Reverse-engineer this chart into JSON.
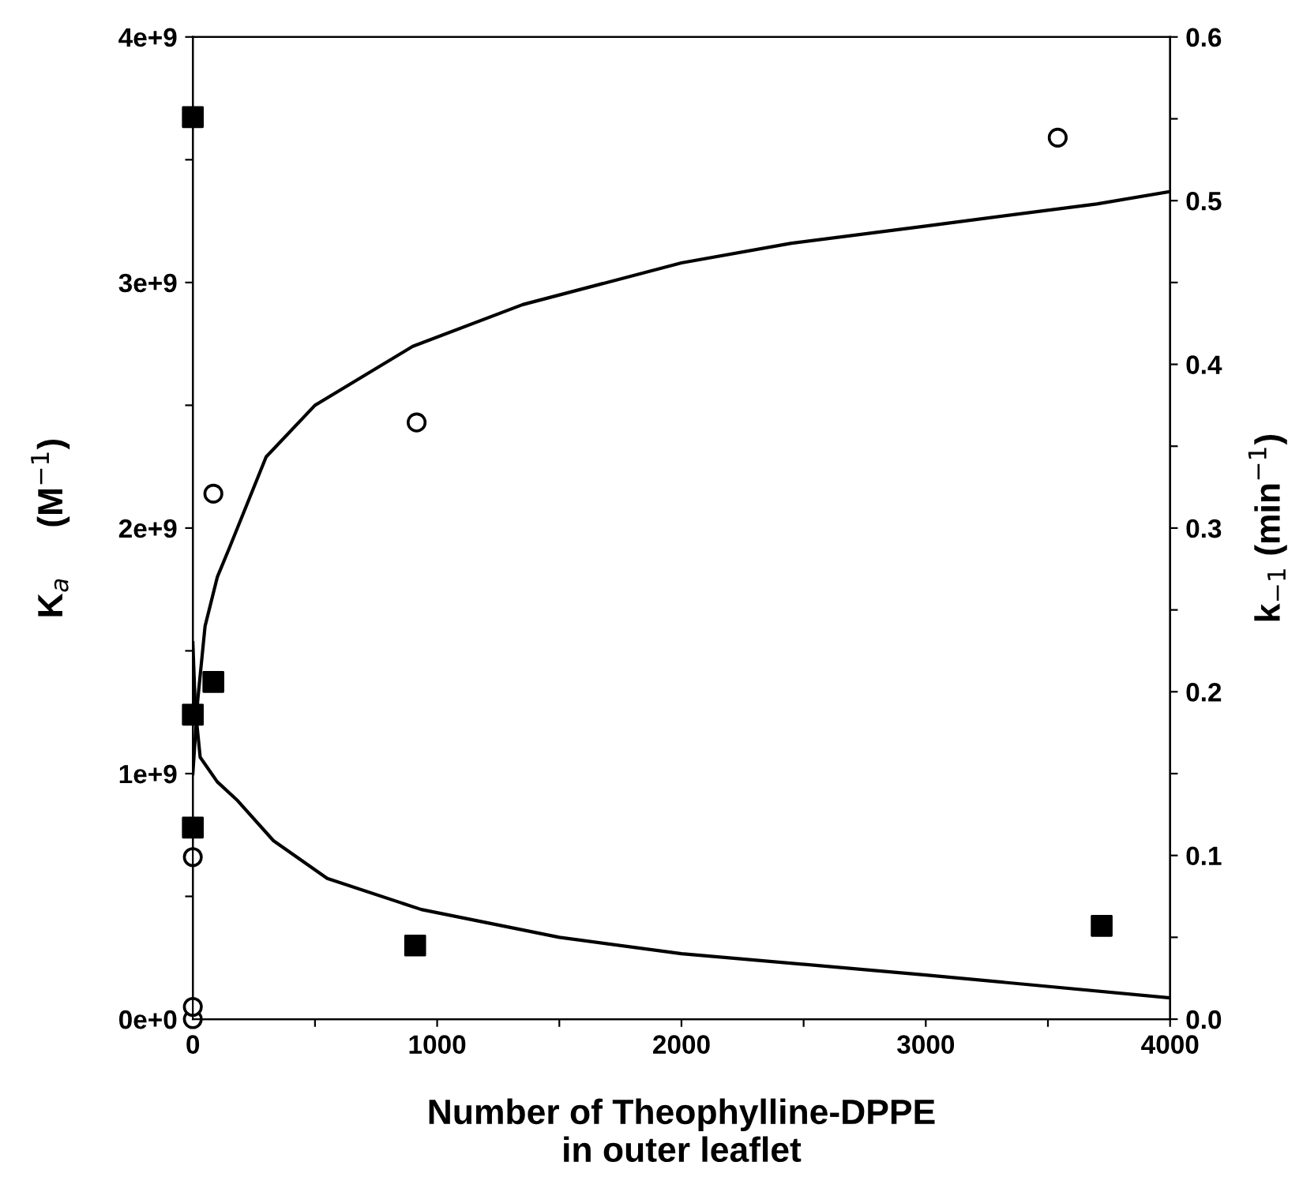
{
  "chart_data": {
    "type": "scatter",
    "xlabel": "Number of Theophylline-DPPE\nin outer leaflet",
    "ylabel": "K$_{a}$     (M$^{−1}$)",
    "y2label": "k$_{−1}$ (min$^{−1}$)",
    "xlim": [
      0,
      4000
    ],
    "xticks": [
      0,
      {
        "value": 500,
        "label": null
      },
      1000,
      {
        "value": 1500,
        "label": null
      },
      2000,
      {
        "value": 2500,
        "label": null
      },
      3000,
      {
        "value": 3500,
        "label": null
      },
      4000
    ],
    "ylim": [
      0,
      4000000000
    ],
    "yticks": [
      {
        "value": 0,
        "label": "0e+0"
      },
      {
        "value": 500000000,
        "label": null
      },
      {
        "value": 1000000000,
        "label": "1e+9"
      },
      {
        "value": 1500000000,
        "label": null
      },
      {
        "value": 2000000000,
        "label": "2e+9"
      },
      {
        "value": 2500000000,
        "label": null
      },
      {
        "value": 3000000000,
        "label": "3e+9"
      },
      {
        "value": 3500000000,
        "label": null
      },
      {
        "value": 4000000000,
        "label": "4e+9"
      }
    ],
    "y2lim": [
      0,
      0.6
    ],
    "y2ticks": [
      {
        "value": 0,
        "label": "0.0"
      },
      {
        "value": 0.05,
        "label": null
      },
      0.1,
      {
        "value": 0.15,
        "label": null
      },
      0.2,
      {
        "value": 0.25,
        "label": null
      },
      0.3,
      {
        "value": 0.35,
        "label": null
      },
      0.4,
      {
        "value": 0.45,
        "label": null
      },
      0.5,
      {
        "value": 0.55,
        "label": null
      },
      0.6
    ],
    "grid": false,
    "legend": false,
    "series": [
      {
        "marker": "circle",
        "color": "#000000",
        "axis": "y",
        "x": [
          0,
          0,
          0,
          84,
          916,
          3540
        ],
        "values": [
          0,
          50000000,
          660000000,
          2140000000,
          2430000000,
          3590000000
        ]
      },
      {
        "marker": "square",
        "color": "#000000",
        "axis": "y2",
        "x": [
          0,
          0,
          0,
          84,
          910,
          3720
        ],
        "values": [
          0.551,
          0.186,
          0.117,
          0.206,
          0.045,
          0.057
        ]
      },
      {
        "type": "line",
        "marker": "none",
        "line_style": "solid",
        "color": "#000000",
        "axis": "y",
        "x": [
          0,
          20,
          50,
          100,
          150,
          300,
          500,
          900,
          1350,
          2000,
          2450,
          3000,
          3700,
          4000
        ],
        "values": [
          1000000000,
          1300000000,
          1600000000,
          1800000000,
          1920000000,
          2290000000,
          2500000000,
          2740000000,
          2910000000,
          3080000000,
          3160000000,
          3230000000,
          3320000000,
          3370000000
        ]
      },
      {
        "type": "line",
        "marker": "none",
        "line_style": "solid",
        "color": "#000000",
        "axis": "y2",
        "x": [
          0,
          10,
          30,
          100,
          180,
          330,
          550,
          935,
          1500,
          2000,
          3000,
          4000
        ],
        "values": [
          0.23,
          0.19,
          0.16,
          0.145,
          0.134,
          0.109,
          0.086,
          0.067,
          0.05,
          0.04,
          0.027,
          0.013
        ]
      }
    ]
  }
}
